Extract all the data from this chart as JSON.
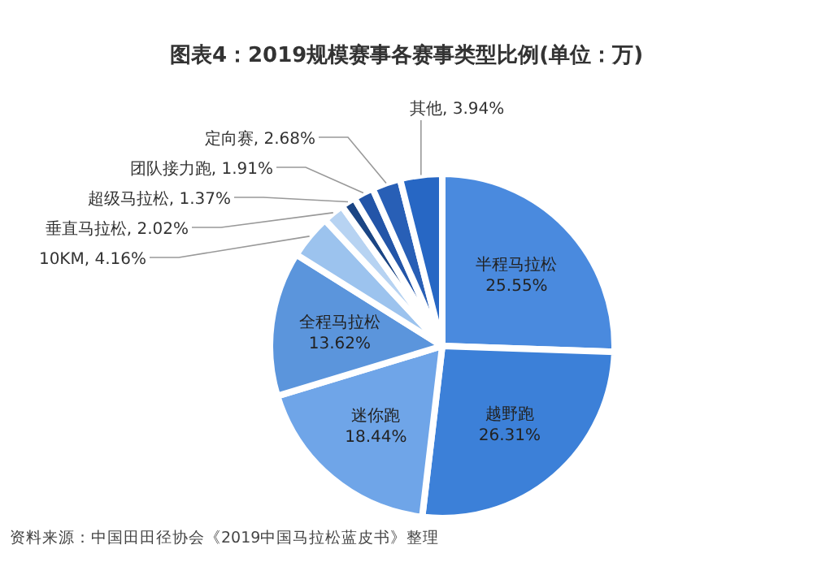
{
  "chart_data": {
    "type": "pie",
    "title": "图表4：2019规模赛事各赛事类型比例(单位：万)",
    "categories": [
      "半程马拉松",
      "越野跑",
      "迷你跑",
      "全程马拉松",
      "10KM",
      "垂直马拉松",
      "超级马拉松",
      "团队接力跑",
      "定向赛",
      "其他"
    ],
    "values": [
      25.55,
      26.31,
      18.44,
      13.62,
      4.16,
      2.02,
      1.37,
      1.91,
      2.68,
      3.94
    ],
    "value_labels": [
      "25.55%",
      "26.31%",
      "18.44%",
      "13.62%",
      "4.16%",
      "2.02%",
      "1.37%",
      "1.91%",
      "2.68%",
      "3.94%"
    ],
    "colors": [
      "#4a8ade",
      "#3c80d8",
      "#6fa5e8",
      "#5b95dc",
      "#9cc3ee",
      "#b7d3f2",
      "#1b4584",
      "#2355a8",
      "#285fb6",
      "#2767c4"
    ],
    "annotations": [
      "资料来源：中国田田径协会《2019中国马拉松蓝皮书》整理"
    ]
  }
}
